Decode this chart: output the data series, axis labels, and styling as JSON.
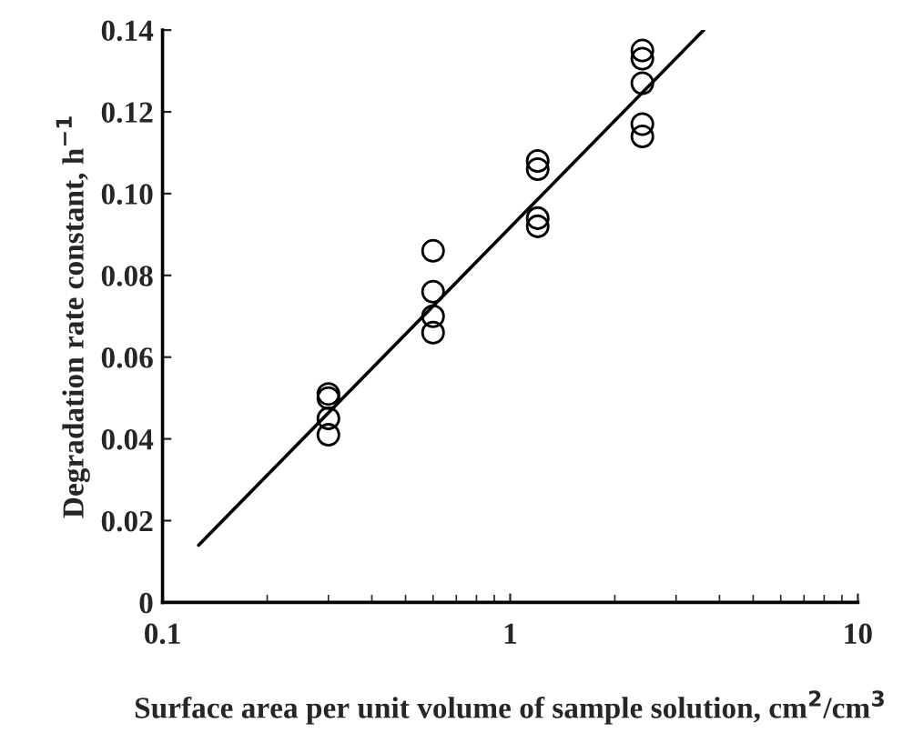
{
  "chart_data": {
    "type": "scatter",
    "xlabel": "Surface area per unit volume of sample solution, cm$^{2}$/cm$^{3}$",
    "ylabel": "Degradation rate constant, h$^{−1}$",
    "log": "x",
    "xlim": [
      0.1,
      10
    ],
    "xticks": [
      0.1,
      1,
      10
    ],
    "ylim": [
      0,
      0.14
    ],
    "yticks": [
      {
        "value": 0,
        "label": "0"
      },
      0.02,
      0.04,
      0.06,
      0.08,
      {
        "value": 0.1,
        "label": "0.10"
      },
      0.12,
      0.14
    ],
    "grid": false,
    "series": [
      {
        "marker": "circle",
        "color": "#000000",
        "x": [
          0.3,
          0.3,
          0.3,
          0.3,
          0.6,
          0.6,
          0.6,
          0.6,
          1.2,
          1.2,
          1.2,
          1.2,
          2.4,
          2.4,
          2.4,
          2.4,
          2.4
        ],
        "values": [
          0.051,
          0.05,
          0.045,
          0.041,
          0.086,
          0.076,
          0.07,
          0.066,
          0.108,
          0.106,
          0.094,
          0.092,
          0.135,
          0.133,
          0.127,
          0.117,
          0.114
        ]
      },
      {
        "type": "line",
        "color": "#000000",
        "x": [
          0.127,
          3.6
        ],
        "values": [
          0.014,
          0.14
        ]
      }
    ]
  }
}
